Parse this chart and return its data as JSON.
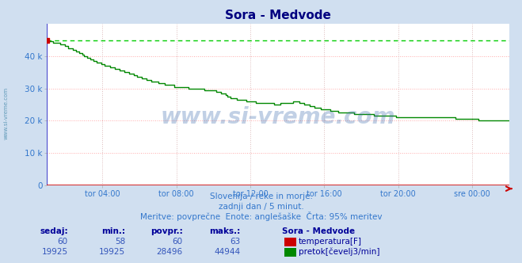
{
  "title": "Sora - Medvode",
  "title_color": "#000080",
  "bg_color": "#d0dff0",
  "plot_bg_color": "#ffffff",
  "grid_color_h": "#ffaaaa",
  "grid_color_v": "#ddbbbb",
  "border_left_color": "#4444cc",
  "border_bottom_color": "#cc0000",
  "x_tick_labels": [
    "tor 04:00",
    "tor 08:00",
    "tor 12:00",
    "tor 16:00",
    "tor 20:00",
    "sre 00:00"
  ],
  "y_ticks": [
    0,
    10000,
    20000,
    30000,
    40000
  ],
  "y_tick_labels": [
    "0",
    "10 k",
    "20 k",
    "30 k",
    "40 k"
  ],
  "ylim": [
    0,
    50000
  ],
  "n_points": 288,
  "flow_color": "#008800",
  "temp_color": "#cc0000",
  "dashed_line_color": "#00cc00",
  "dashed_line_value": 44944,
  "watermark": "www.si-vreme.com",
  "watermark_color": "#3366aa",
  "watermark_alpha": 0.3,
  "subtitle1": "Slovenija / reke in morje.",
  "subtitle2": "zadnji dan / 5 minut.",
  "subtitle3": "Meritve: povprečne  Enote: anglešaške  Črta: 95% meritev",
  "subtitle_color": "#3377cc",
  "table_header": [
    "sedaj:",
    "min.:",
    "povpr.:",
    "maks.:",
    "Sora - Medvode"
  ],
  "row1_vals": [
    "60",
    "58",
    "60",
    "63"
  ],
  "row2_vals": [
    "19925",
    "19925",
    "28496",
    "44944"
  ],
  "label1": "temperatura[F]",
  "label2": "pretok[čevelj3/min]",
  "table_header_color": "#000099",
  "table_num_color": "#3355bb",
  "left_label": "www.si-vreme.com",
  "left_label_color": "#4488aa",
  "tick_label_color": "#3377cc",
  "flow_breakpoints_x": [
    0,
    0.015,
    0.03,
    0.05,
    0.07,
    0.09,
    0.11,
    0.13,
    0.15,
    0.17,
    0.2,
    0.23,
    0.26,
    0.29,
    0.32,
    0.36,
    0.38,
    0.4,
    0.42,
    0.44,
    0.46,
    0.48,
    0.5,
    0.52,
    0.54,
    0.56,
    0.57,
    0.58,
    0.6,
    0.62,
    0.64,
    0.66,
    0.68,
    0.7,
    0.73,
    0.76,
    0.8,
    0.84,
    0.87,
    0.9,
    0.94,
    0.97,
    1.0
  ],
  "flow_breakpoints_y": [
    44500,
    44200,
    43500,
    42500,
    41000,
    39500,
    38000,
    37000,
    36000,
    35000,
    33500,
    32000,
    31000,
    30500,
    30000,
    29500,
    28500,
    27000,
    26500,
    26000,
    25500,
    25300,
    25200,
    25500,
    26000,
    25000,
    24500,
    24000,
    23500,
    23000,
    22500,
    22300,
    22000,
    21800,
    21500,
    21200,
    21000,
    20800,
    21000,
    20500,
    20200,
    20000,
    19925
  ]
}
